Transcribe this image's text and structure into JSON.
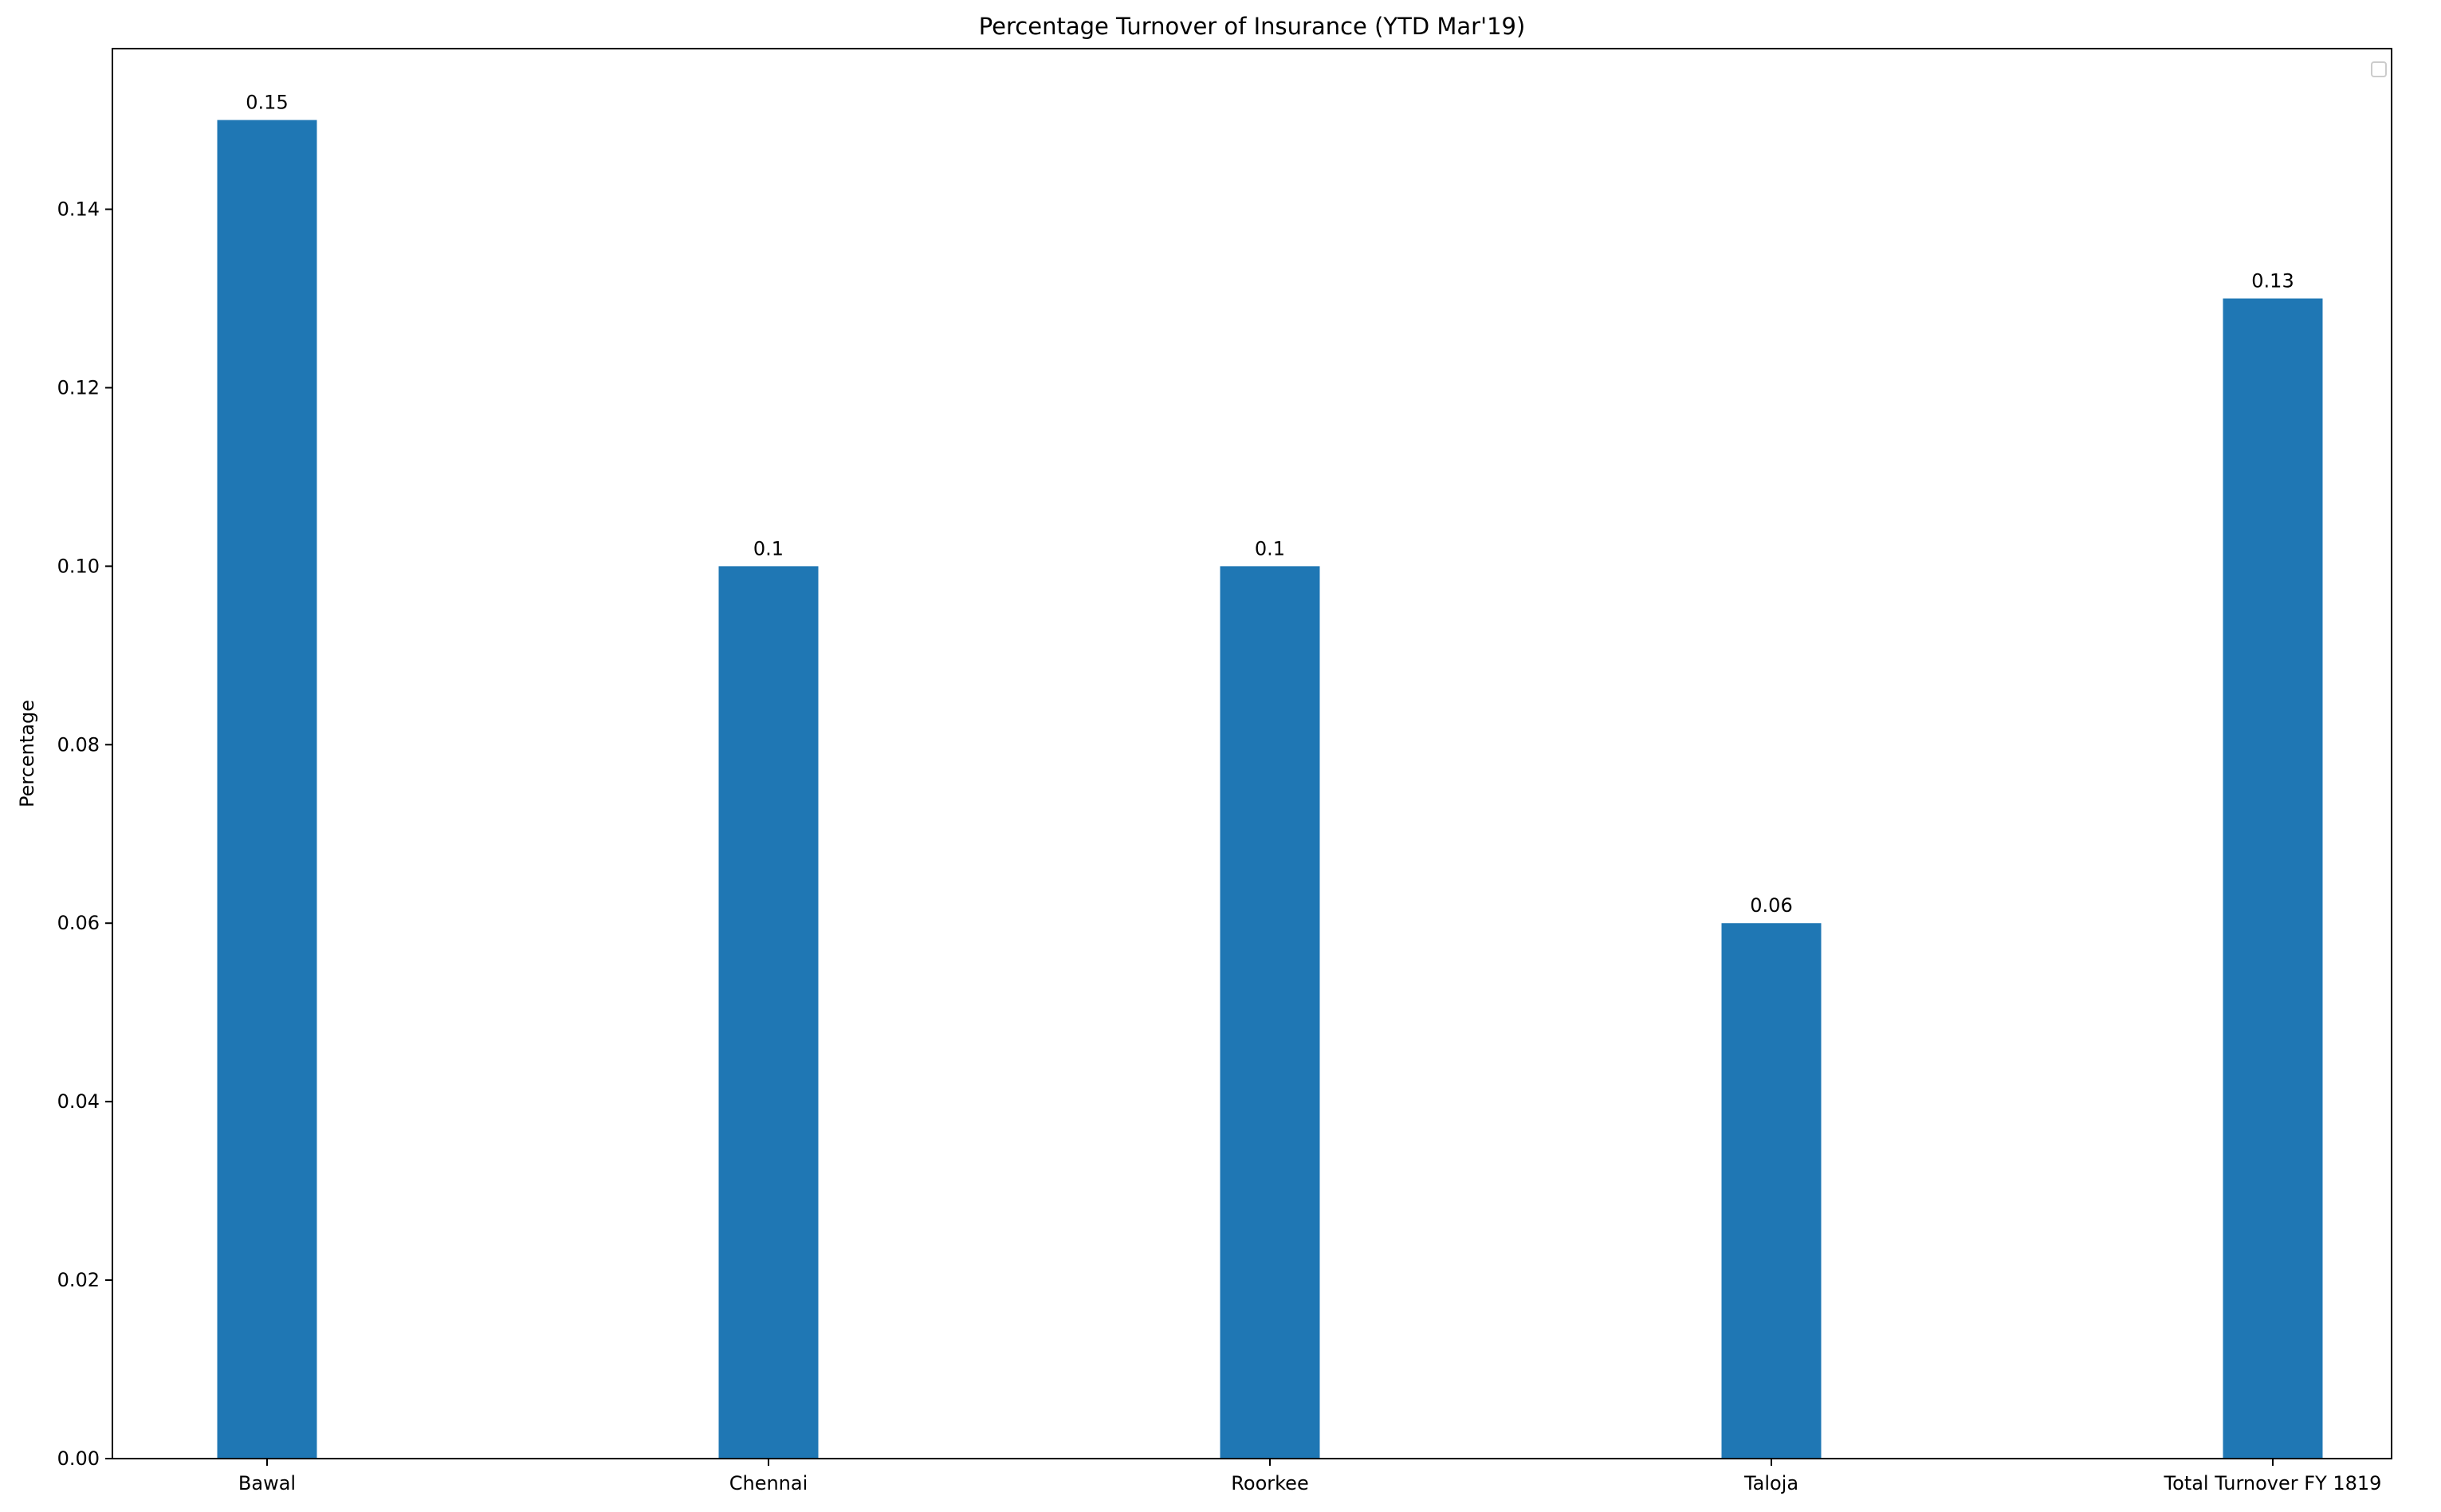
{
  "chart_data": {
    "type": "bar",
    "title": "Percentage Turnover of Insurance (YTD Mar'19)",
    "xlabel": "",
    "ylabel": "Percentage",
    "categories": [
      "Bawal",
      "Chennai",
      "Roorkee",
      "Taloja",
      "Total Turnover FY 1819"
    ],
    "values": [
      0.15,
      0.1,
      0.1,
      0.06,
      0.13
    ],
    "data_labels": [
      "0.15",
      "0.1",
      "0.1",
      "0.06",
      "0.13"
    ],
    "ylim": [
      0,
      0.158
    ],
    "yticks": [
      0.0,
      0.02,
      0.04,
      0.06,
      0.08,
      0.1,
      0.12,
      0.14
    ],
    "ytick_labels": [
      "0.00",
      "0.02",
      "0.04",
      "0.06",
      "0.08",
      "0.10",
      "0.12",
      "0.14"
    ],
    "grid": false,
    "legend": "top-right",
    "bar_color": "#1f77b4"
  }
}
